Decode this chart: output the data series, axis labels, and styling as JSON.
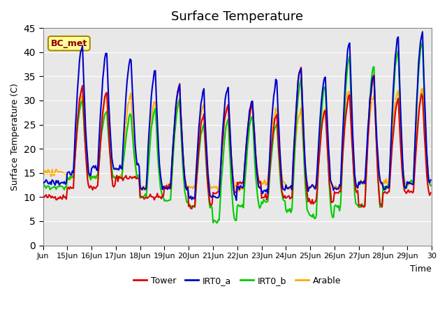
{
  "title": "Surface Temperature",
  "ylabel": "Surface Temperature (C)",
  "xlabel": "Time",
  "annotation": "BC_met",
  "ylim": [
    0,
    45
  ],
  "xlim": [
    0,
    384
  ],
  "background_color": "#e8e8e8",
  "series_colors": {
    "Tower": "#dd0000",
    "IRT0_a": "#0000cc",
    "IRT0_b": "#00cc00",
    "Arable": "#ffaa00"
  },
  "xtick_labels": [
    "Jun",
    "15Jun",
    "16Jun",
    "17Jun",
    "18Jun",
    "19Jun",
    "20Jun",
    "21Jun",
    "22Jun",
    "23Jun",
    "24Jun",
    "25Jun",
    "26Jun",
    "27Jun",
    "28Jun",
    "29Jun",
    "30"
  ],
  "xtick_positions": [
    0,
    24,
    48,
    72,
    96,
    120,
    144,
    168,
    192,
    216,
    240,
    264,
    288,
    312,
    336,
    360,
    384
  ],
  "ytick_positions": [
    0,
    5,
    10,
    15,
    20,
    25,
    30,
    35,
    40,
    45
  ],
  "linewidth": 1.5
}
